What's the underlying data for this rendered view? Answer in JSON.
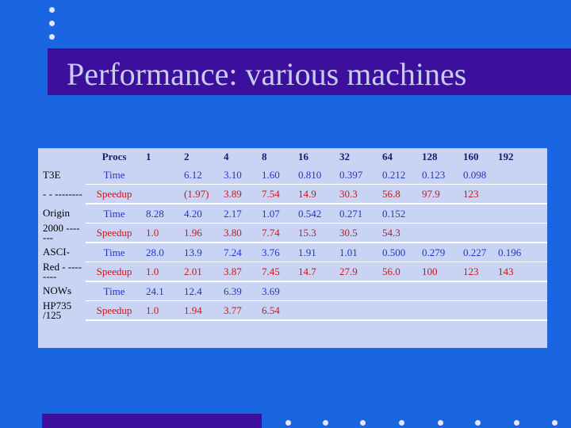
{
  "slide": {
    "title": "Performance: various machines",
    "colors": {
      "background": "#1a66e0",
      "title_bar": "#3c0f9c",
      "title_text": "#c8cdf0",
      "table_bg": "#c9d3f4",
      "time_text": "#2433c8",
      "speedup_text": "#d01515"
    }
  },
  "table": {
    "headers": [
      "",
      "Procs",
      "1",
      "2",
      "4",
      "8",
      "16",
      "32",
      "64",
      "128",
      "160",
      "192"
    ],
    "rows": [
      {
        "label": "T3E",
        "metric": "Time",
        "values": [
          "",
          "6.12",
          "3.10",
          "1.60",
          "0.810",
          "0.397",
          "0.212",
          "0.123",
          "0.098",
          ""
        ]
      },
      {
        "label": "- - --------",
        "metric": "Speedup",
        "values": [
          "",
          "(1.97)",
          "3.89",
          "7.54",
          "14.9",
          "30.3",
          "56.8",
          "97.9",
          "123",
          ""
        ]
      },
      {
        "label": "Origin",
        "metric": "Time",
        "values": [
          "8.28",
          "4.20",
          "2.17",
          "1.07",
          "0.542",
          "0.271",
          "0.152",
          "",
          "",
          ""
        ]
      },
      {
        "label": "2000 -------",
        "metric": "Speedup",
        "values": [
          "1.0",
          "1.96",
          "3.80",
          "7.74",
          "15.3",
          "30.5",
          "54.3",
          "",
          "",
          ""
        ]
      },
      {
        "label": "ASCI-",
        "metric": "Time",
        "values": [
          "28.0",
          "13.9",
          "7.24",
          "3.76",
          "1.91",
          "1.01",
          "0.500",
          "0.279",
          "0.227",
          "0.196"
        ]
      },
      {
        "label": "Red - --------",
        "metric": "Speedup",
        "values": [
          "1.0",
          "2.01",
          "3.87",
          "7.45",
          "14.7",
          "27.9",
          "56.0",
          "100",
          "123",
          "143"
        ]
      },
      {
        "label": "NOWs",
        "metric": "Time",
        "values": [
          "24.1",
          "12.4",
          "6.39",
          "3.69",
          "",
          "",
          "",
          "",
          "",
          ""
        ]
      },
      {
        "label": "HP735 /125",
        "metric": "Speedup",
        "values": [
          "1.0",
          "1.94",
          "3.77",
          "6.54",
          "",
          "",
          "",
          "",
          "",
          ""
        ]
      }
    ]
  }
}
